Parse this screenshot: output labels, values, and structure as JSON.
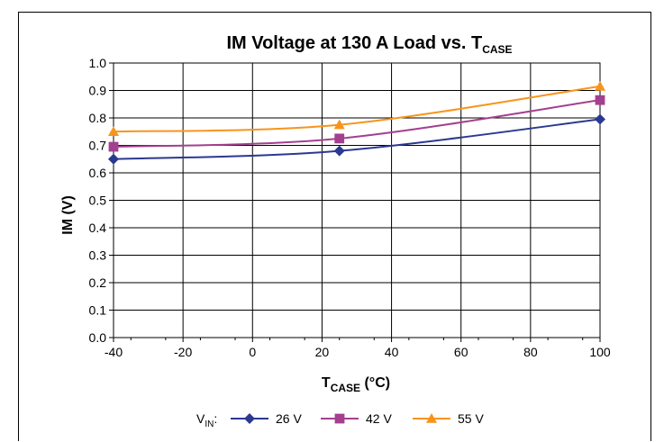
{
  "chart_data": {
    "type": "line",
    "title": "IM Voltage at 130 A Load vs. T",
    "title_subscript": "CASE",
    "xlabel": "T",
    "xlabel_subscript": "CASE",
    "xlabel_unit": " (°C)",
    "ylabel": "IM (V)",
    "xlim": [
      -40,
      100
    ],
    "ylim": [
      0.0,
      1.0
    ],
    "x_ticks": [
      "-40",
      "-20",
      "0",
      "20",
      "40",
      "60",
      "80",
      "100"
    ],
    "y_ticks": [
      "0.0",
      "0.1",
      "0.2",
      "0.3",
      "0.4",
      "0.5",
      "0.6",
      "0.7",
      "0.8",
      "0.9",
      "1.0"
    ],
    "grid": true,
    "legend_position": "bottom",
    "legend_prefix": "V",
    "legend_prefix_subscript": "IN",
    "legend_prefix_suffix": ":",
    "series": [
      {
        "name": "26 V",
        "color": "#2b3990",
        "marker": "diamond",
        "x": [
          -40,
          25,
          100
        ],
        "y": [
          0.65,
          0.68,
          0.795
        ]
      },
      {
        "name": "42 V",
        "color": "#a3408f",
        "marker": "square",
        "x": [
          -40,
          25,
          100
        ],
        "y": [
          0.695,
          0.725,
          0.865
        ]
      },
      {
        "name": "55 V",
        "color": "#f7941d",
        "marker": "triangle",
        "x": [
          -40,
          25,
          100
        ],
        "y": [
          0.75,
          0.775,
          0.915
        ]
      }
    ]
  }
}
